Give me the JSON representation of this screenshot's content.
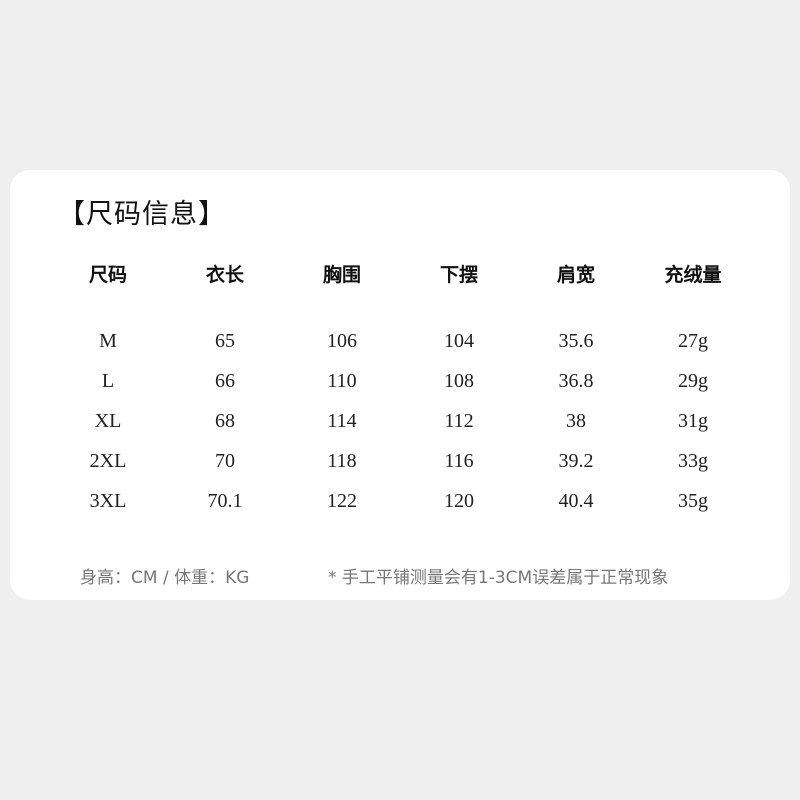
{
  "title": "【尺码信息】",
  "headers": [
    "尺码",
    "衣长",
    "胸围",
    "下摆",
    "肩宽",
    "充绒量"
  ],
  "rows": [
    [
      "M",
      "65",
      "106",
      "104",
      "35.6",
      "27g"
    ],
    [
      "L",
      "66",
      "110",
      "108",
      "36.8",
      "29g"
    ],
    [
      "XL",
      "68",
      "114",
      "112",
      "38",
      "31g"
    ],
    [
      "2XL",
      "70",
      "118",
      "116",
      "39.2",
      "33g"
    ],
    [
      "3XL",
      "70.1",
      "122",
      "120",
      "40.4",
      "35g"
    ]
  ],
  "footer_left": "身高：CM / 体重：KG",
  "footer_right": "* 手工平铺测量会有1-3CM误差属于正常现象"
}
